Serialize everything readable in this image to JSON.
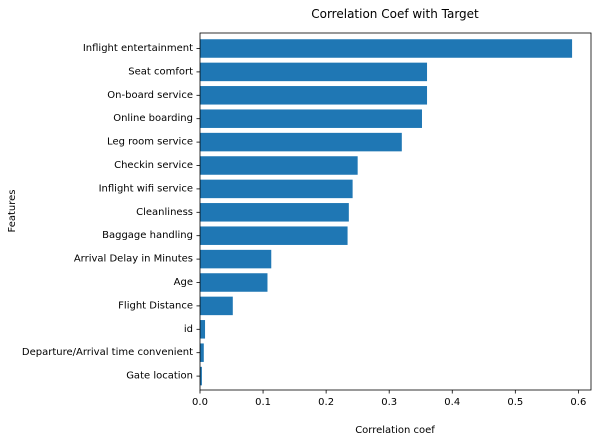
{
  "chart_data": {
    "type": "bar",
    "orientation": "horizontal",
    "title": "Correlation Coef with Target",
    "xlabel": "Correlation coef",
    "ylabel": "Features",
    "xlim": [
      0,
      0.62
    ],
    "xticks": [
      0,
      0.1,
      0.2,
      0.3,
      0.4,
      0.5,
      0.6
    ],
    "xtick_labels": [
      "0.0",
      "0.1",
      "0.2",
      "0.3",
      "0.4",
      "0.5",
      "0.6"
    ],
    "grid": false,
    "bar_color": "#1f77b4",
    "categories": [
      "Inflight entertainment",
      "Seat comfort",
      "On-board service",
      "Online boarding",
      "Leg room service",
      "Checkin service",
      "Inflight wifi service",
      "Cleanliness",
      "Baggage handling",
      "Arrival Delay in Minutes",
      "Age",
      "Flight Distance",
      "id",
      "Departure/Arrival time convenient",
      "Gate location"
    ],
    "values": [
      0.59,
      0.36,
      0.36,
      0.352,
      0.32,
      0.25,
      0.242,
      0.236,
      0.234,
      0.113,
      0.107,
      0.052,
      0.008,
      0.006,
      0.003
    ]
  }
}
